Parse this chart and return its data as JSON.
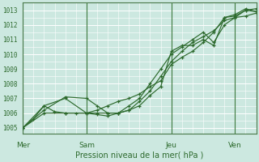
{
  "background_color": "#cce8e0",
  "grid_color": "#ffffff",
  "line_color": "#2d6a2d",
  "marker_color": "#2d6a2d",
  "axis_label_color": "#2d6a2d",
  "tick_label_color": "#2d6a2d",
  "xlabel": "Pression niveau de la mer( hPa )",
  "ylim": [
    1004.6,
    1013.5
  ],
  "yticks": [
    1005,
    1006,
    1007,
    1008,
    1009,
    1010,
    1011,
    1012,
    1013
  ],
  "xtick_labels": [
    "Mer",
    "Sam",
    "Jeu",
    "Ven"
  ],
  "xtick_positions": [
    0.0,
    0.273,
    0.636,
    0.909
  ],
  "vline_positions": [
    0.0,
    0.273,
    0.636,
    0.909
  ],
  "series": [
    {
      "x": [
        0.0,
        0.045,
        0.091,
        0.136,
        0.182,
        0.227,
        0.273,
        0.318,
        0.364,
        0.409,
        0.455,
        0.5,
        0.545,
        0.591,
        0.636,
        0.682,
        0.727,
        0.773,
        0.818,
        0.864,
        0.909,
        0.955,
        1.0
      ],
      "y": [
        1005.0,
        1005.6,
        1006.5,
        1006.1,
        1006.0,
        1006.0,
        1006.0,
        1006.2,
        1006.5,
        1006.8,
        1007.0,
        1007.3,
        1007.8,
        1008.2,
        1009.3,
        1009.8,
        1010.2,
        1010.8,
        1011.5,
        1012.5,
        1012.7,
        1013.1,
        1012.9
      ]
    },
    {
      "x": [
        0.0,
        0.091,
        0.182,
        0.273,
        0.318,
        0.364,
        0.409,
        0.455,
        0.5,
        0.545,
        0.591,
        0.636,
        0.682,
        0.727,
        0.773,
        0.818,
        0.864,
        0.909,
        0.955,
        1.0
      ],
      "y": [
        1005.0,
        1006.5,
        1007.0,
        1006.0,
        1005.9,
        1005.8,
        1006.0,
        1006.2,
        1006.5,
        1007.2,
        1007.8,
        1010.2,
        1010.6,
        1010.6,
        1011.0,
        1010.6,
        1012.5,
        1012.6,
        1013.0,
        1012.9
      ]
    },
    {
      "x": [
        0.0,
        0.091,
        0.182,
        0.273,
        0.318,
        0.364,
        0.409,
        0.455,
        0.5,
        0.545,
        0.591,
        0.636,
        0.682,
        0.727,
        0.773,
        0.818,
        0.864,
        0.909,
        0.955,
        1.0
      ],
      "y": [
        1005.0,
        1006.2,
        1007.1,
        1007.0,
        1006.5,
        1006.0,
        1006.0,
        1006.5,
        1007.0,
        1008.0,
        1009.0,
        1010.0,
        1010.5,
        1011.0,
        1011.5,
        1010.8,
        1012.0,
        1012.5,
        1013.0,
        1013.1
      ]
    },
    {
      "x": [
        0.0,
        0.091,
        0.182,
        0.273,
        0.318,
        0.364,
        0.409,
        0.455,
        0.5,
        0.545,
        0.591,
        0.636,
        0.682,
        0.727,
        0.773,
        0.818,
        0.864,
        0.909,
        0.955,
        1.0
      ],
      "y": [
        1005.0,
        1006.0,
        1006.0,
        1006.0,
        1006.0,
        1006.0,
        1006.0,
        1006.2,
        1006.8,
        1007.5,
        1008.5,
        1009.5,
        1010.2,
        1010.8,
        1011.2,
        1011.6,
        1012.3,
        1012.5,
        1012.6,
        1012.8
      ]
    }
  ]
}
